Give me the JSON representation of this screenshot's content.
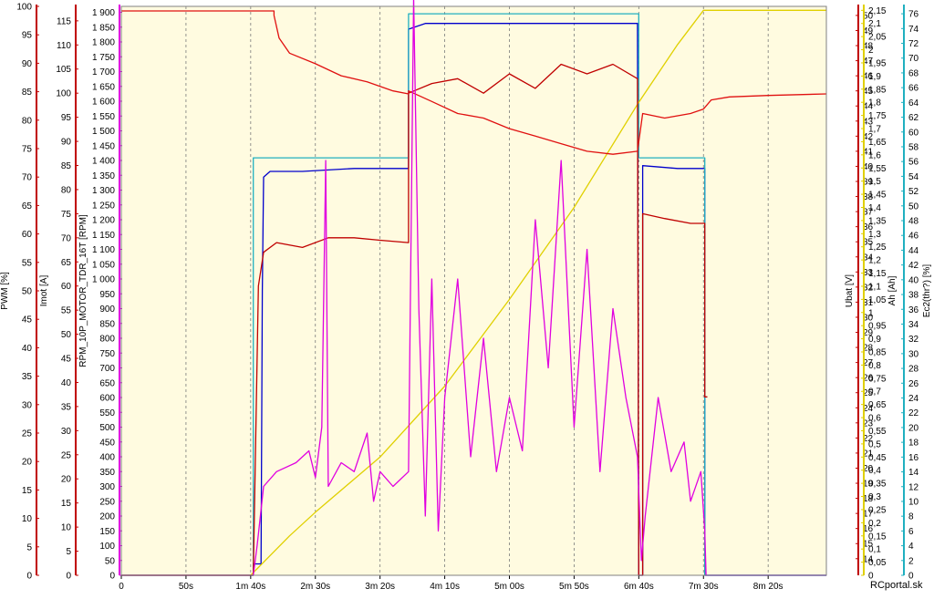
{
  "chart_data": {
    "type": "line",
    "x_ticks": [
      "0",
      "50s",
      "1m 40s",
      "2m 30s",
      "3m 20s",
      "4m 10s",
      "5m 00s",
      "5m 50s",
      "6m 40s",
      "7m 30s",
      "8m 20s"
    ],
    "x_tick_seconds": [
      0,
      50,
      100,
      150,
      200,
      250,
      300,
      350,
      400,
      450,
      500
    ],
    "xlim": [
      0,
      545
    ],
    "grid": true,
    "axes": [
      {
        "id": "pwm",
        "label": "PWM [%]",
        "color": "#c00000",
        "side": "left",
        "ylim": [
          0,
          100
        ],
        "ticks": [
          "0",
          "5",
          "10",
          "15",
          "20",
          "25",
          "30",
          "35",
          "40",
          "45",
          "50",
          "55",
          "60",
          "65",
          "70",
          "75",
          "80",
          "85",
          "90",
          "95",
          "100"
        ]
      },
      {
        "id": "imot",
        "label": "Imot [A]",
        "color": "#c00000",
        "side": "left",
        "ylim": [
          0,
          118
        ],
        "ticks": [
          "0",
          "5",
          "10",
          "15",
          "20",
          "25",
          "30",
          "35",
          "40",
          "45",
          "50",
          "55",
          "60",
          "65",
          "70",
          "75",
          "80",
          "85",
          "90",
          "95",
          "100",
          "105",
          "110",
          "115"
        ]
      },
      {
        "id": "rpm",
        "label": "RPM_10P_MOTOR_TDR_16T [RPM]",
        "color": "#e000e0",
        "side": "left",
        "ylim": [
          0,
          1920
        ],
        "ticks": [
          "0",
          "50",
          "100",
          "150",
          "200",
          "250",
          "300",
          "350",
          "400",
          "450",
          "500",
          "550",
          "600",
          "650",
          "700",
          "750",
          "800",
          "850",
          "900",
          "950",
          "1 000",
          "1 050",
          "1 100",
          "1 150",
          "1 200",
          "1 250",
          "1 300",
          "1 350",
          "1 400",
          "1 450",
          "1 500",
          "1 550",
          "1 600",
          "1 650",
          "1 700",
          "1 750",
          "1 800",
          "1 850",
          "1 900"
        ]
      },
      {
        "id": "ubat",
        "label": "Ubat [V]",
        "color": "#c00000",
        "side": "right",
        "ylim": [
          12.9,
          50.6
        ],
        "ticks": [
          "14",
          "15",
          "16",
          "17",
          "18",
          "19",
          "20",
          "21",
          "22",
          "23",
          "24",
          "25",
          "26",
          "27",
          "28",
          "29",
          "30",
          "31",
          "32",
          "33",
          "34",
          "35",
          "36",
          "37",
          "38",
          "39",
          "40",
          "41",
          "42",
          "43",
          "44",
          "45",
          "46",
          "47",
          "48",
          "49",
          "50"
        ]
      },
      {
        "id": "ah",
        "label": "Ah [Ah]",
        "color": "#e0d000",
        "side": "right",
        "ylim": [
          0,
          2.165
        ],
        "ticks": [
          "0",
          "0,05",
          "0,1",
          "0,15",
          "0,2",
          "0,25",
          "0,3",
          "0,35",
          "0,4",
          "0,45",
          "0,5",
          "0,55",
          "0,6",
          "0,65",
          "0,7",
          "0,75",
          "0,8",
          "0,85",
          "0,9",
          "0,95",
          "1",
          "1,05",
          "1,1",
          "1,15",
          "1,2",
          "1,25",
          "1,3",
          "1,35",
          "1,4",
          "1,45",
          "1,5",
          "1,55",
          "1,6",
          "1,65",
          "1,7",
          "1,75",
          "1,8",
          "1,85",
          "1,9",
          "1,95",
          "2",
          "2,05",
          "2,1",
          "2,15"
        ]
      },
      {
        "id": "ec2",
        "label": "Ec2(thr?) [%]",
        "color": "#20b0c0",
        "side": "right",
        "ylim": [
          0,
          77
        ],
        "ticks": [
          "0",
          "2",
          "4",
          "6",
          "8",
          "10",
          "12",
          "14",
          "16",
          "18",
          "20",
          "22",
          "24",
          "26",
          "28",
          "30",
          "32",
          "34",
          "36",
          "38",
          "40",
          "42",
          "44",
          "46",
          "48",
          "50",
          "52",
          "54",
          "56",
          "58",
          "60",
          "62",
          "64",
          "66",
          "68",
          "70",
          "72",
          "74",
          "76"
        ]
      }
    ],
    "series": [
      {
        "axis": "pwm",
        "color": "#0000cc",
        "points": [
          [
            0,
            0
          ],
          [
            102,
            0
          ],
          [
            102,
            2
          ],
          [
            108,
            2
          ],
          [
            109,
            50
          ],
          [
            110,
            70
          ],
          [
            115,
            71
          ],
          [
            120,
            71
          ],
          [
            140,
            71
          ],
          [
            180,
            71.5
          ],
          [
            222,
            71.5
          ],
          [
            222,
            96
          ],
          [
            235,
            97
          ],
          [
            260,
            97
          ],
          [
            300,
            97
          ],
          [
            350,
            97
          ],
          [
            370,
            97
          ],
          [
            399,
            97
          ],
          [
            400,
            0
          ],
          [
            403,
            0
          ],
          [
            403,
            72
          ],
          [
            430,
            71.5
          ],
          [
            451,
            71.5
          ],
          [
            451,
            0
          ],
          [
            545,
            0
          ]
        ]
      },
      {
        "axis": "ec2",
        "color": "#20b0c0",
        "points": [
          [
            0,
            0
          ],
          [
            102,
            0
          ],
          [
            102,
            56.5
          ],
          [
            222,
            56.5
          ],
          [
            222,
            76
          ],
          [
            400,
            76
          ],
          [
            400,
            56.5
          ],
          [
            451,
            56.5
          ],
          [
            451,
            0
          ],
          [
            545,
            0
          ]
        ]
      },
      {
        "axis": "ah",
        "color": "#e0d000",
        "points": [
          [
            0,
            0
          ],
          [
            100,
            0
          ],
          [
            130,
            0.15
          ],
          [
            150,
            0.24
          ],
          [
            200,
            0.45
          ],
          [
            250,
            0.72
          ],
          [
            300,
            1.05
          ],
          [
            350,
            1.4
          ],
          [
            400,
            1.8
          ],
          [
            430,
            2.02
          ],
          [
            450,
            2.15
          ],
          [
            545,
            2.15
          ]
        ]
      },
      {
        "axis": "imot",
        "color": "#c00000",
        "points": [
          [
            0,
            0
          ],
          [
            102,
            0
          ],
          [
            106,
            60
          ],
          [
            110,
            67
          ],
          [
            120,
            69
          ],
          [
            140,
            68
          ],
          [
            160,
            70
          ],
          [
            180,
            70
          ],
          [
            200,
            69.5
          ],
          [
            222,
            69
          ],
          [
            222,
            100
          ],
          [
            240,
            102
          ],
          [
            260,
            103
          ],
          [
            280,
            100
          ],
          [
            300,
            104
          ],
          [
            320,
            101
          ],
          [
            340,
            106
          ],
          [
            360,
            104
          ],
          [
            380,
            106
          ],
          [
            399,
            103
          ],
          [
            400,
            0
          ],
          [
            403,
            0
          ],
          [
            403,
            75
          ],
          [
            420,
            74
          ],
          [
            440,
            73
          ],
          [
            451,
            73
          ],
          [
            451,
            37
          ],
          [
            453,
            37
          ]
        ]
      },
      {
        "axis": "ubat",
        "color": "#e01010",
        "points": [
          [
            0,
            50.3
          ],
          [
            118,
            50.3
          ],
          [
            118,
            50
          ],
          [
            122,
            48.5
          ],
          [
            130,
            47.5
          ],
          [
            150,
            46.8
          ],
          [
            170,
            46
          ],
          [
            190,
            45.6
          ],
          [
            210,
            45
          ],
          [
            222,
            44.8
          ],
          [
            222,
            45
          ],
          [
            240,
            44.3
          ],
          [
            260,
            43.5
          ],
          [
            280,
            43.2
          ],
          [
            300,
            42.5
          ],
          [
            320,
            42
          ],
          [
            340,
            41.5
          ],
          [
            360,
            41
          ],
          [
            380,
            40.8
          ],
          [
            399,
            41
          ],
          [
            403,
            43.5
          ],
          [
            420,
            43.2
          ],
          [
            440,
            43.5
          ],
          [
            450,
            43.8
          ],
          [
            456,
            44.4
          ],
          [
            470,
            44.6
          ],
          [
            500,
            44.7
          ],
          [
            545,
            44.8
          ]
        ]
      },
      {
        "axis": "rpm",
        "color": "#e000e0",
        "points": [
          [
            0,
            0
          ],
          [
            102,
            0
          ],
          [
            105,
            100
          ],
          [
            110,
            300
          ],
          [
            120,
            350
          ],
          [
            135,
            380
          ],
          [
            145,
            420
          ],
          [
            150,
            330
          ],
          [
            155,
            500
          ],
          [
            158,
            1400
          ],
          [
            160,
            300
          ],
          [
            170,
            380
          ],
          [
            180,
            350
          ],
          [
            190,
            480
          ],
          [
            195,
            250
          ],
          [
            200,
            350
          ],
          [
            210,
            300
          ],
          [
            222,
            350
          ],
          [
            226,
            1950
          ],
          [
            230,
            900
          ],
          [
            235,
            200
          ],
          [
            240,
            1000
          ],
          [
            245,
            150
          ],
          [
            250,
            600
          ],
          [
            260,
            1000
          ],
          [
            270,
            400
          ],
          [
            280,
            800
          ],
          [
            290,
            350
          ],
          [
            300,
            600
          ],
          [
            310,
            420
          ],
          [
            320,
            1200
          ],
          [
            330,
            700
          ],
          [
            340,
            1400
          ],
          [
            350,
            500
          ],
          [
            360,
            1100
          ],
          [
            370,
            350
          ],
          [
            380,
            900
          ],
          [
            390,
            600
          ],
          [
            399,
            400
          ],
          [
            402,
            50
          ],
          [
            405,
            200
          ],
          [
            415,
            600
          ],
          [
            425,
            350
          ],
          [
            435,
            450
          ],
          [
            440,
            250
          ],
          [
            448,
            350
          ],
          [
            451,
            150
          ],
          [
            452,
            0
          ],
          [
            545,
            0
          ]
        ]
      }
    ]
  },
  "watermark": "RCportal.sk"
}
